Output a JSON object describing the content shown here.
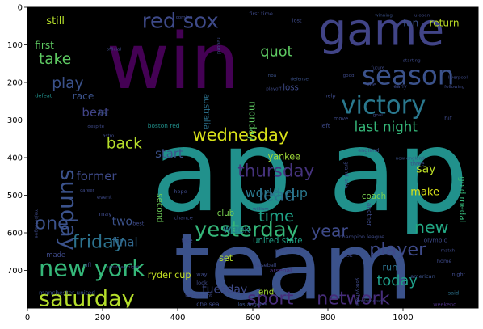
{
  "chart_data": {
    "type": "wordcloud",
    "title": "",
    "xlabel": "",
    "ylabel": "",
    "xlim": [
      0,
      1200
    ],
    "ylim": [
      800,
      0
    ],
    "xticks": [
      0,
      200,
      400,
      600,
      800,
      1000
    ],
    "yticks": [
      0,
      100,
      200,
      300,
      400,
      500,
      600,
      700
    ],
    "background": "#000000",
    "colormap": "viridis",
    "words": [
      {
        "text": "win",
        "x": 210,
        "y": 215,
        "size": 205,
        "color": "#440154",
        "rotate": 0
      },
      {
        "text": "ap",
        "x": 330,
        "y": 540,
        "size": 300,
        "color": "#21918c",
        "rotate": 0
      },
      {
        "text": "ap",
        "x": 800,
        "y": 540,
        "size": 300,
        "color": "#21918c",
        "rotate": 0
      },
      {
        "text": "team",
        "x": 390,
        "y": 775,
        "size": 245,
        "color": "#3b528b",
        "rotate": 0
      },
      {
        "text": "game",
        "x": 775,
        "y": 100,
        "size": 118,
        "color": "#414487",
        "rotate": 0
      },
      {
        "text": "season",
        "x": 890,
        "y": 205,
        "size": 70,
        "color": "#3b528b",
        "rotate": 0
      },
      {
        "text": "victory",
        "x": 835,
        "y": 283,
        "size": 66,
        "color": "#2a788e",
        "rotate": 0
      },
      {
        "text": "red sox",
        "x": 305,
        "y": 55,
        "size": 56,
        "color": "#3e4a89",
        "rotate": 0
      },
      {
        "text": "new york",
        "x": 30,
        "y": 715,
        "size": 62,
        "color": "#35b779",
        "rotate": 0
      },
      {
        "text": "saturday",
        "x": 30,
        "y": 795,
        "size": 58,
        "color": "#b5de2b",
        "rotate": 0
      },
      {
        "text": "yesterday",
        "x": 445,
        "y": 610,
        "size": 56,
        "color": "#35b779",
        "rotate": 0
      },
      {
        "text": "wednesday",
        "x": 440,
        "y": 355,
        "size": 45,
        "color": "#d8e219",
        "rotate": 0
      },
      {
        "text": "sunday",
        "x": 90,
        "y": 430,
        "size": 60,
        "color": "#3b528b",
        "rotate": 90
      },
      {
        "text": "sport",
        "x": 585,
        "y": 790,
        "size": 48,
        "color": "#472d7b",
        "rotate": 0
      },
      {
        "text": "network",
        "x": 770,
        "y": 790,
        "size": 48,
        "color": "#472d7b",
        "rotate": 0
      },
      {
        "text": "player",
        "x": 910,
        "y": 660,
        "size": 48,
        "color": "#3e4a89",
        "rotate": 0
      },
      {
        "text": "one",
        "x": 20,
        "y": 590,
        "size": 48,
        "color": "#3b528b",
        "rotate": 0
      },
      {
        "text": "friday",
        "x": 120,
        "y": 640,
        "size": 48,
        "color": "#2c728e",
        "rotate": 0
      },
      {
        "text": "thursday",
        "x": 560,
        "y": 450,
        "size": 46,
        "color": "#46337e",
        "rotate": 0
      },
      {
        "text": "lead",
        "x": 615,
        "y": 515,
        "size": 46,
        "color": "#2c728e",
        "rotate": 0
      },
      {
        "text": "year",
        "x": 755,
        "y": 610,
        "size": 44,
        "color": "#3e4a89",
        "rotate": 0
      },
      {
        "text": "time",
        "x": 615,
        "y": 570,
        "size": 42,
        "color": "#1fa187",
        "rotate": 0
      },
      {
        "text": "new",
        "x": 1030,
        "y": 600,
        "size": 44,
        "color": "#22a884",
        "rotate": 0
      },
      {
        "text": "take",
        "x": 30,
        "y": 150,
        "size": 40,
        "color": "#5ec962",
        "rotate": 0
      },
      {
        "text": "play",
        "x": 65,
        "y": 215,
        "size": 40,
        "color": "#3b528b",
        "rotate": 0
      },
      {
        "text": "quot",
        "x": 620,
        "y": 130,
        "size": 38,
        "color": "#5ec962",
        "rotate": 0
      },
      {
        "text": "back",
        "x": 210,
        "y": 375,
        "size": 40,
        "color": "#b5de2b",
        "rotate": 0
      },
      {
        "text": "last night",
        "x": 870,
        "y": 330,
        "size": 36,
        "color": "#35b779",
        "rotate": 0
      },
      {
        "text": "today",
        "x": 930,
        "y": 740,
        "size": 38,
        "color": "#1f9e89",
        "rotate": 0
      },
      {
        "text": "world cup",
        "x": 580,
        "y": 505,
        "size": 34,
        "color": "#2a788e",
        "rotate": 0
      },
      {
        "text": "beat",
        "x": 145,
        "y": 290,
        "size": 32,
        "color": "#414487",
        "rotate": 0
      },
      {
        "text": "start",
        "x": 340,
        "y": 400,
        "size": 32,
        "color": "#3b528b",
        "rotate": 0
      },
      {
        "text": "former",
        "x": 130,
        "y": 460,
        "size": 32,
        "color": "#3e4a89",
        "rotate": 0
      },
      {
        "text": "two",
        "x": 225,
        "y": 580,
        "size": 30,
        "color": "#3b528b",
        "rotate": 0
      },
      {
        "text": "final",
        "x": 225,
        "y": 635,
        "size": 32,
        "color": "#31688e",
        "rotate": 0
      },
      {
        "text": "week",
        "x": 520,
        "y": 600,
        "size": 28,
        "color": "#26828e",
        "rotate": 0
      },
      {
        "text": "say",
        "x": 1035,
        "y": 440,
        "size": 30,
        "color": "#bddf26",
        "rotate": 0
      },
      {
        "text": "make",
        "x": 1020,
        "y": 500,
        "size": 28,
        "color": "#d8e219",
        "rotate": 0
      },
      {
        "text": "still",
        "x": 50,
        "y": 45,
        "size": 28,
        "color": "#b5de2b",
        "rotate": 0
      },
      {
        "text": "first",
        "x": 20,
        "y": 110,
        "size": 26,
        "color": "#5ec962",
        "rotate": 0
      },
      {
        "text": "fan",
        "x": 1000,
        "y": 50,
        "size": 26,
        "color": "#3b528b",
        "rotate": 0
      },
      {
        "text": "return",
        "x": 1070,
        "y": 50,
        "size": 26,
        "color": "#bddf26",
        "rotate": 0
      },
      {
        "text": "race",
        "x": 120,
        "y": 245,
        "size": 26,
        "color": "#3b528b",
        "rotate": 0
      },
      {
        "text": "yankee",
        "x": 640,
        "y": 405,
        "size": 24,
        "color": "#a0da39",
        "rotate": 0
      },
      {
        "text": "second",
        "x": 345,
        "y": 495,
        "size": 22,
        "color": "#6ece58",
        "rotate": 90
      },
      {
        "text": "club",
        "x": 505,
        "y": 555,
        "size": 22,
        "color": "#7ad151",
        "rotate": 0
      },
      {
        "text": "united state",
        "x": 600,
        "y": 628,
        "size": 22,
        "color": "#1fa187",
        "rotate": 0
      },
      {
        "text": "run",
        "x": 945,
        "y": 700,
        "size": 24,
        "color": "#2c728e",
        "rotate": 0
      },
      {
        "text": "set",
        "x": 510,
        "y": 675,
        "size": 24,
        "color": "#b5de2b",
        "rotate": 0
      },
      {
        "text": "ryder cup",
        "x": 320,
        "y": 720,
        "size": 24,
        "color": "#c2df23",
        "rotate": 0
      },
      {
        "text": "tuesday",
        "x": 465,
        "y": 760,
        "size": 30,
        "color": "#3e4a89",
        "rotate": 0
      },
      {
        "text": "end",
        "x": 615,
        "y": 765,
        "size": 22,
        "color": "#a5db36",
        "rotate": 0
      },
      {
        "text": "monday",
        "x": 590,
        "y": 250,
        "size": 26,
        "color": "#5ec962",
        "rotate": 90
      },
      {
        "text": "australia",
        "x": 470,
        "y": 230,
        "size": 22,
        "color": "#2c728e",
        "rotate": 90
      },
      {
        "text": "coach",
        "x": 890,
        "y": 510,
        "size": 22,
        "color": "#7ad151",
        "rotate": 0
      },
      {
        "text": "loss",
        "x": 680,
        "y": 220,
        "size": 22,
        "color": "#3e4a89",
        "rotate": 0
      },
      {
        "text": "gold medal",
        "x": 1150,
        "y": 450,
        "size": 22,
        "color": "#35b779",
        "rotate": 90
      },
      {
        "text": "manchester united",
        "x": 30,
        "y": 765,
        "size": 16,
        "color": "#3b528b",
        "rotate": 0
      },
      {
        "text": "boston red",
        "x": 320,
        "y": 320,
        "size": 16,
        "color": "#21918c",
        "rotate": 0
      },
      {
        "text": "olympic",
        "x": 1055,
        "y": 625,
        "size": 16,
        "color": "#3e4a89",
        "rotate": 0
      },
      {
        "text": "arsenal",
        "x": 645,
        "y": 705,
        "size": 16,
        "color": "#472d7b",
        "rotate": 0
      },
      {
        "text": "chelsea",
        "x": 450,
        "y": 795,
        "size": 16,
        "color": "#3e4a89",
        "rotate": 0
      },
      {
        "text": "los angeles",
        "x": 560,
        "y": 795,
        "size": 14,
        "color": "#3b528b",
        "rotate": 0
      },
      {
        "text": "weekend",
        "x": 1080,
        "y": 795,
        "size": 14,
        "color": "#472d7b",
        "rotate": 0
      },
      {
        "text": "said",
        "x": 1120,
        "y": 765,
        "size": 14,
        "color": "#2c728e",
        "rotate": 0
      },
      {
        "text": "american",
        "x": 1020,
        "y": 720,
        "size": 14,
        "color": "#3b528b",
        "rotate": 0
      },
      {
        "text": "england",
        "x": 880,
        "y": 385,
        "size": 14,
        "color": "#3b528b",
        "rotate": 0
      },
      {
        "text": "new england",
        "x": 980,
        "y": 405,
        "size": 12,
        "color": "#3b528b",
        "rotate": 0
      },
      {
        "text": "grand prix",
        "x": 845,
        "y": 410,
        "size": 14,
        "color": "#3e4a89",
        "rotate": 90
      },
      {
        "text": "champion league",
        "x": 830,
        "y": 615,
        "size": 14,
        "color": "#3e4a89",
        "rotate": 0
      },
      {
        "text": "winning",
        "x": 925,
        "y": 25,
        "size": 12,
        "color": "#3b528b",
        "rotate": 0
      },
      {
        "text": "defeat",
        "x": 20,
        "y": 240,
        "size": 14,
        "color": "#21918c",
        "rotate": 0
      },
      {
        "text": "big",
        "x": 190,
        "y": 285,
        "size": 16,
        "color": "#3b528b",
        "rotate": 0
      },
      {
        "text": "nba",
        "x": 640,
        "y": 185,
        "size": 12,
        "color": "#3b528b",
        "rotate": 0
      },
      {
        "text": "defense",
        "x": 700,
        "y": 195,
        "size": 12,
        "color": "#3b528b",
        "rotate": 0
      },
      {
        "text": "record",
        "x": 505,
        "y": 80,
        "size": 14,
        "color": "#3e4a89",
        "rotate": 90
      },
      {
        "text": "first time",
        "x": 590,
        "y": 22,
        "size": 14,
        "color": "#3e4a89",
        "rotate": 0
      },
      {
        "text": "lost",
        "x": 705,
        "y": 40,
        "size": 14,
        "color": "#3e4a89",
        "rotate": 0
      },
      {
        "text": "hit",
        "x": 1110,
        "y": 300,
        "size": 16,
        "color": "#3e4a89",
        "rotate": 0
      },
      {
        "text": "early",
        "x": 975,
        "y": 215,
        "size": 14,
        "color": "#3e4a89",
        "rotate": 0
      },
      {
        "text": "help",
        "x": 790,
        "y": 240,
        "size": 14,
        "color": "#3e4a89",
        "rotate": 0
      },
      {
        "text": "side",
        "x": 900,
        "y": 210,
        "size": 14,
        "color": "#3e4a89",
        "rotate": 0
      },
      {
        "text": "move",
        "x": 815,
        "y": 300,
        "size": 14,
        "color": "#3e4a89",
        "rotate": 0
      },
      {
        "text": "left",
        "x": 780,
        "y": 320,
        "size": 16,
        "color": "#3e4a89",
        "rotate": 0
      },
      {
        "text": "goal",
        "x": 920,
        "y": 290,
        "size": 12,
        "color": "#3e4a89",
        "rotate": 0
      },
      {
        "text": "three",
        "x": 1020,
        "y": 420,
        "size": 14,
        "color": "#3e4a89",
        "rotate": 0
      },
      {
        "text": "event",
        "x": 185,
        "y": 510,
        "size": 14,
        "color": "#3e4a89",
        "rotate": 0
      },
      {
        "text": "may",
        "x": 190,
        "y": 555,
        "size": 16,
        "color": "#3e4a89",
        "rotate": 0
      },
      {
        "text": "best",
        "x": 280,
        "y": 580,
        "size": 14,
        "color": "#3e4a89",
        "rotate": 0
      },
      {
        "text": "chance",
        "x": 390,
        "y": 565,
        "size": 14,
        "color": "#3e4a89",
        "rotate": 0
      },
      {
        "text": "face",
        "x": 410,
        "y": 625,
        "size": 14,
        "color": "#3e4a89",
        "rotate": 0
      },
      {
        "text": "hope",
        "x": 390,
        "y": 495,
        "size": 14,
        "color": "#3e4a89",
        "rotate": 0
      },
      {
        "text": "made",
        "x": 50,
        "y": 665,
        "size": 18,
        "color": "#3e4a89",
        "rotate": 0
      },
      {
        "text": "nfl",
        "x": 150,
        "y": 690,
        "size": 16,
        "color": "#3e4a89",
        "rotate": 0
      },
      {
        "text": "baseball",
        "x": 605,
        "y": 690,
        "size": 14,
        "color": "#3e4a89",
        "rotate": 0
      },
      {
        "text": "look",
        "x": 450,
        "y": 738,
        "size": 14,
        "color": "#3e4a89",
        "rotate": 0
      },
      {
        "text": "way",
        "x": 450,
        "y": 715,
        "size": 14,
        "color": "#3e4a89",
        "rotate": 0
      },
      {
        "text": "took",
        "x": 835,
        "y": 665,
        "size": 14,
        "color": "#3e4a89",
        "rotate": 0
      },
      {
        "text": "home",
        "x": 1090,
        "y": 680,
        "size": 14,
        "color": "#3e4a89",
        "rotate": 0
      },
      {
        "text": "night",
        "x": 1130,
        "y": 715,
        "size": 14,
        "color": "#3e4a89",
        "rotate": 0
      },
      {
        "text": "liverpool",
        "x": 1120,
        "y": 190,
        "size": 12,
        "color": "#3e4a89",
        "rotate": 0
      },
      {
        "text": "u open",
        "x": 1030,
        "y": 25,
        "size": 12,
        "color": "#3e4a89",
        "rotate": 0
      },
      {
        "text": "future",
        "x": 915,
        "y": 165,
        "size": 12,
        "color": "#3e4a89",
        "rotate": 0
      },
      {
        "text": "another",
        "x": 905,
        "y": 520,
        "size": 16,
        "color": "#3e4a89",
        "rotate": 90
      },
      {
        "text": "york yankee",
        "x": 875,
        "y": 720,
        "size": 12,
        "color": "#3e4a89",
        "rotate": 90
      },
      {
        "text": "running back",
        "x": 660,
        "y": 650,
        "size": 12,
        "color": "#3e4a89",
        "rotate": 0
      },
      {
        "text": "tournament",
        "x": 420,
        "y": 770,
        "size": 12,
        "color": "#3e4a89",
        "rotate": 0
      },
      {
        "text": "major league",
        "x": 20,
        "y": 535,
        "size": 12,
        "color": "#3e4a89",
        "rotate": 90
      },
      {
        "text": "saturday night",
        "x": 210,
        "y": 695,
        "size": 12,
        "color": "#3e4a89",
        "rotate": 0
      },
      {
        "text": "san francisco",
        "x": 870,
        "y": 785,
        "size": 12,
        "color": "#3e4a89",
        "rotate": 0
      },
      {
        "text": "match",
        "x": 1100,
        "y": 650,
        "size": 12,
        "color": "#3e4a89",
        "rotate": 0
      },
      {
        "text": "william",
        "x": 600,
        "y": 540,
        "size": 12,
        "color": "#3e4a89",
        "rotate": 0
      },
      {
        "text": "astro",
        "x": 200,
        "y": 345,
        "size": 12,
        "color": "#3e4a89",
        "rotate": 0
      },
      {
        "text": "despite",
        "x": 160,
        "y": 320,
        "size": 12,
        "color": "#3e4a89",
        "rotate": 0
      },
      {
        "text": "career",
        "x": 140,
        "y": 490,
        "size": 12,
        "color": "#3e4a89",
        "rotate": 0
      },
      {
        "text": "official",
        "x": 210,
        "y": 115,
        "size": 12,
        "color": "#3e4a89",
        "rotate": 0
      },
      {
        "text": "coming",
        "x": 395,
        "y": 30,
        "size": 12,
        "color": "#3e4a89",
        "rotate": 0
      },
      {
        "text": "starting",
        "x": 1000,
        "y": 145,
        "size": 12,
        "color": "#3e4a89",
        "rotate": 0
      },
      {
        "text": "following",
        "x": 1110,
        "y": 215,
        "size": 12,
        "color": "#3e4a89",
        "rotate": 0
      },
      {
        "text": "good",
        "x": 840,
        "y": 185,
        "size": 12,
        "color": "#3e4a89",
        "rotate": 0
      },
      {
        "text": "playoff",
        "x": 635,
        "y": 220,
        "size": 12,
        "color": "#3e4a89",
        "rotate": 0
      }
    ]
  }
}
